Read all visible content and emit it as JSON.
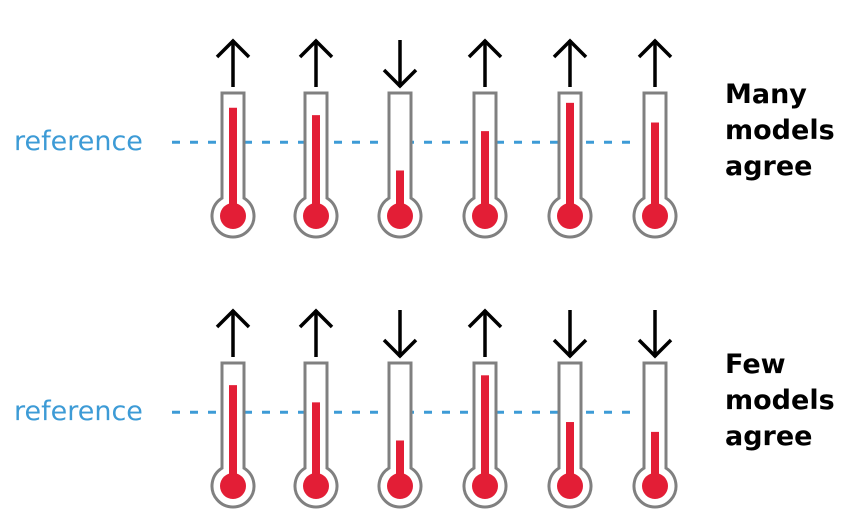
{
  "colors": {
    "reference": "#3d9bd6",
    "mercury": "#e31e36",
    "outline": "#808080",
    "arrow": "#000000"
  },
  "reference_level": 0.6,
  "rows": [
    {
      "reference_label": "reference",
      "label_lines": [
        "Many",
        "models",
        "agree"
      ],
      "thermometers": [
        {
          "direction": "up",
          "level": 0.88
        },
        {
          "direction": "up",
          "level": 0.82
        },
        {
          "direction": "down",
          "level": 0.37
        },
        {
          "direction": "up",
          "level": 0.69
        },
        {
          "direction": "up",
          "level": 0.92
        },
        {
          "direction": "up",
          "level": 0.76
        }
      ]
    },
    {
      "reference_label": "reference",
      "label_lines": [
        "Few",
        "models",
        "agree"
      ],
      "thermometers": [
        {
          "direction": "up",
          "level": 0.82
        },
        {
          "direction": "up",
          "level": 0.68
        },
        {
          "direction": "down",
          "level": 0.37
        },
        {
          "direction": "up",
          "level": 0.9
        },
        {
          "direction": "down",
          "level": 0.52
        },
        {
          "direction": "down",
          "level": 0.44
        }
      ]
    }
  ]
}
